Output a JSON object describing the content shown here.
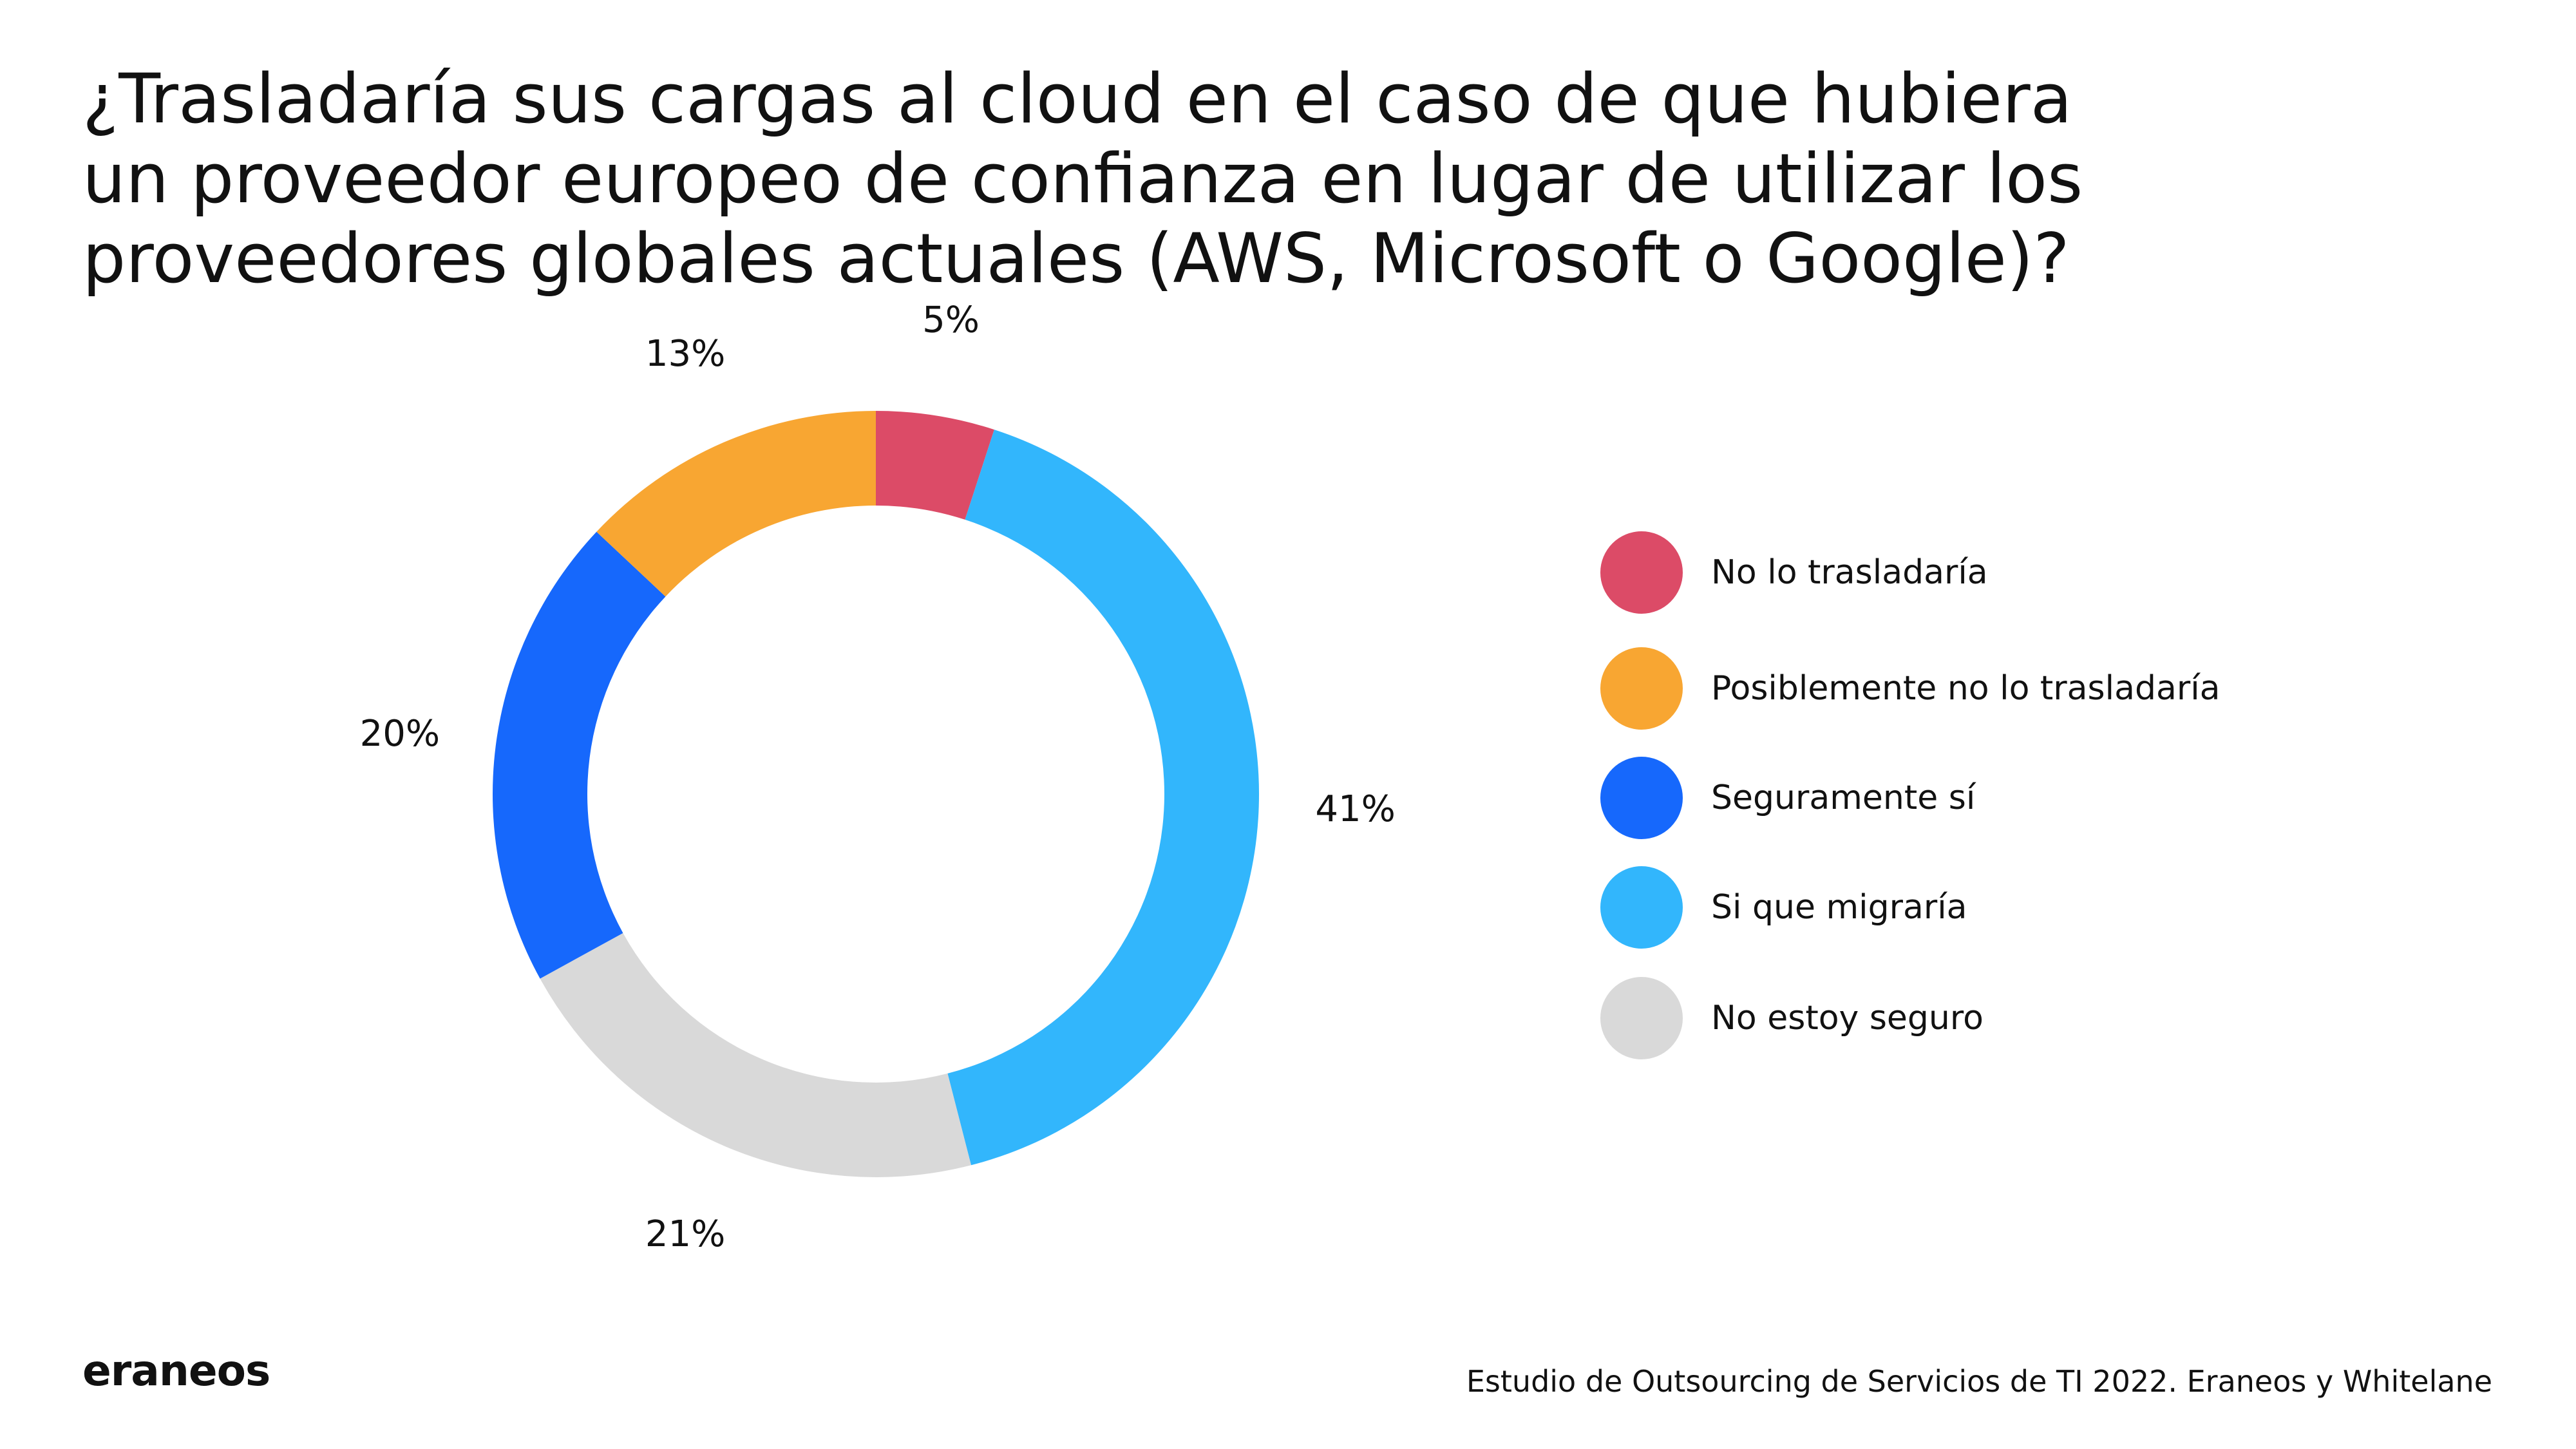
{
  "title_lines": [
    "¿Trasladaría sus cargas al cloud en el caso de que hubiera",
    "un proveedor europeo de confianza en lugar de utilizar los",
    "proveedores globales actuales (AWS, Microsoft o Google)?"
  ],
  "chart_data": {
    "type": "pie",
    "variant": "donut",
    "title": "¿Trasladaría sus cargas al cloud en el caso de que hubiera un proveedor europeo de confianza en lugar de utilizar los proveedores globales actuales (AWS, Microsoft o Google)?",
    "legend_position": "right",
    "slices": [
      {
        "name": "No lo trasladaría",
        "value": 5,
        "label": "5%",
        "color": "#DC4B67"
      },
      {
        "name": "Si que migraría",
        "value": 41,
        "label": "41%",
        "color": "#32B6FC"
      },
      {
        "name": "No estoy seguro",
        "value": 21,
        "label": "21%",
        "color": "#D9D9D9"
      },
      {
        "name": "Seguramente sí",
        "value": 20,
        "label": "20%",
        "color": "#1668FC"
      },
      {
        "name": "Posiblemente no lo trasladaría",
        "value": 13,
        "label": "13%",
        "color": "#F8A632"
      }
    ]
  },
  "legend": {
    "items": [
      {
        "label": "No lo trasladaría",
        "color": "#DC4B67"
      },
      {
        "label": "Posiblemente no lo trasladaría",
        "color": "#F8A632"
      },
      {
        "label": "Seguramente sí",
        "color": "#1668FC"
      },
      {
        "label": "Si que migraría",
        "color": "#32B6FC"
      },
      {
        "label": "No estoy seguro",
        "color": "#D9D9D9"
      }
    ]
  },
  "footer": {
    "logo": "eraneos",
    "source": "Estudio de Outsourcing de Servicios de TI 2022. Eraneos y Whitelane"
  }
}
